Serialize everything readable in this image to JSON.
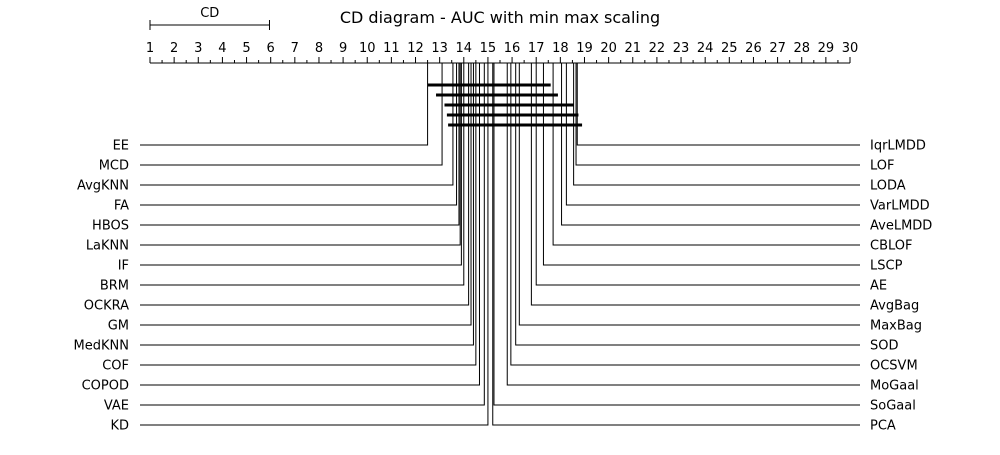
{
  "chart_data": {
    "type": "cd-diagram",
    "title": "CD diagram - AUC with min max scaling",
    "cd_label": "CD",
    "cd_value": 4.95,
    "axis": {
      "min": 1,
      "max": 30,
      "ticks": [
        1,
        2,
        3,
        4,
        5,
        6,
        7,
        8,
        9,
        10,
        11,
        12,
        13,
        14,
        15,
        16,
        17,
        18,
        19,
        20,
        21,
        22,
        23,
        24,
        25,
        26,
        27,
        28,
        29,
        30
      ]
    },
    "left_methods": [
      {
        "name": "EE",
        "rank": 12.5
      },
      {
        "name": "MCD",
        "rank": 13.1
      },
      {
        "name": "AvgKNN",
        "rank": 13.55
      },
      {
        "name": "FA",
        "rank": 13.7
      },
      {
        "name": "HBOS",
        "rank": 13.8
      },
      {
        "name": "LaKNN",
        "rank": 13.85
      },
      {
        "name": "IF",
        "rank": 13.9
      },
      {
        "name": "BRM",
        "rank": 14.0
      },
      {
        "name": "OCKRA",
        "rank": 14.2
      },
      {
        "name": "GM",
        "rank": 14.3
      },
      {
        "name": "MedKNN",
        "rank": 14.4
      },
      {
        "name": "COF",
        "rank": 14.5
      },
      {
        "name": "COPOD",
        "rank": 14.65
      },
      {
        "name": "VAE",
        "rank": 14.85
      },
      {
        "name": "KD",
        "rank": 15.0
      }
    ],
    "right_methods": [
      {
        "name": "IqrLMDD",
        "rank": 18.7
      },
      {
        "name": "LOF",
        "rank": 18.65
      },
      {
        "name": "LODA",
        "rank": 18.55
      },
      {
        "name": "VarLMDD",
        "rank": 18.25
      },
      {
        "name": "AveLMDD",
        "rank": 18.05
      },
      {
        "name": "CBLOF",
        "rank": 17.7
      },
      {
        "name": "LSCP",
        "rank": 17.3
      },
      {
        "name": "AE",
        "rank": 17.0
      },
      {
        "name": "AvgBag",
        "rank": 16.8
      },
      {
        "name": "MaxBag",
        "rank": 16.3
      },
      {
        "name": "SOD",
        "rank": 16.15
      },
      {
        "name": "OCSVM",
        "rank": 15.95
      },
      {
        "name": "MoGaal",
        "rank": 15.8
      },
      {
        "name": "SoGaal",
        "rank": 15.25
      },
      {
        "name": "PCA",
        "rank": 15.2
      }
    ],
    "cliques": [
      {
        "start": 12.5,
        "end": 17.6
      },
      {
        "start": 12.85,
        "end": 17.9
      },
      {
        "start": 13.2,
        "end": 18.55
      },
      {
        "start": 13.3,
        "end": 18.75
      },
      {
        "start": 13.35,
        "end": 18.9
      }
    ]
  }
}
